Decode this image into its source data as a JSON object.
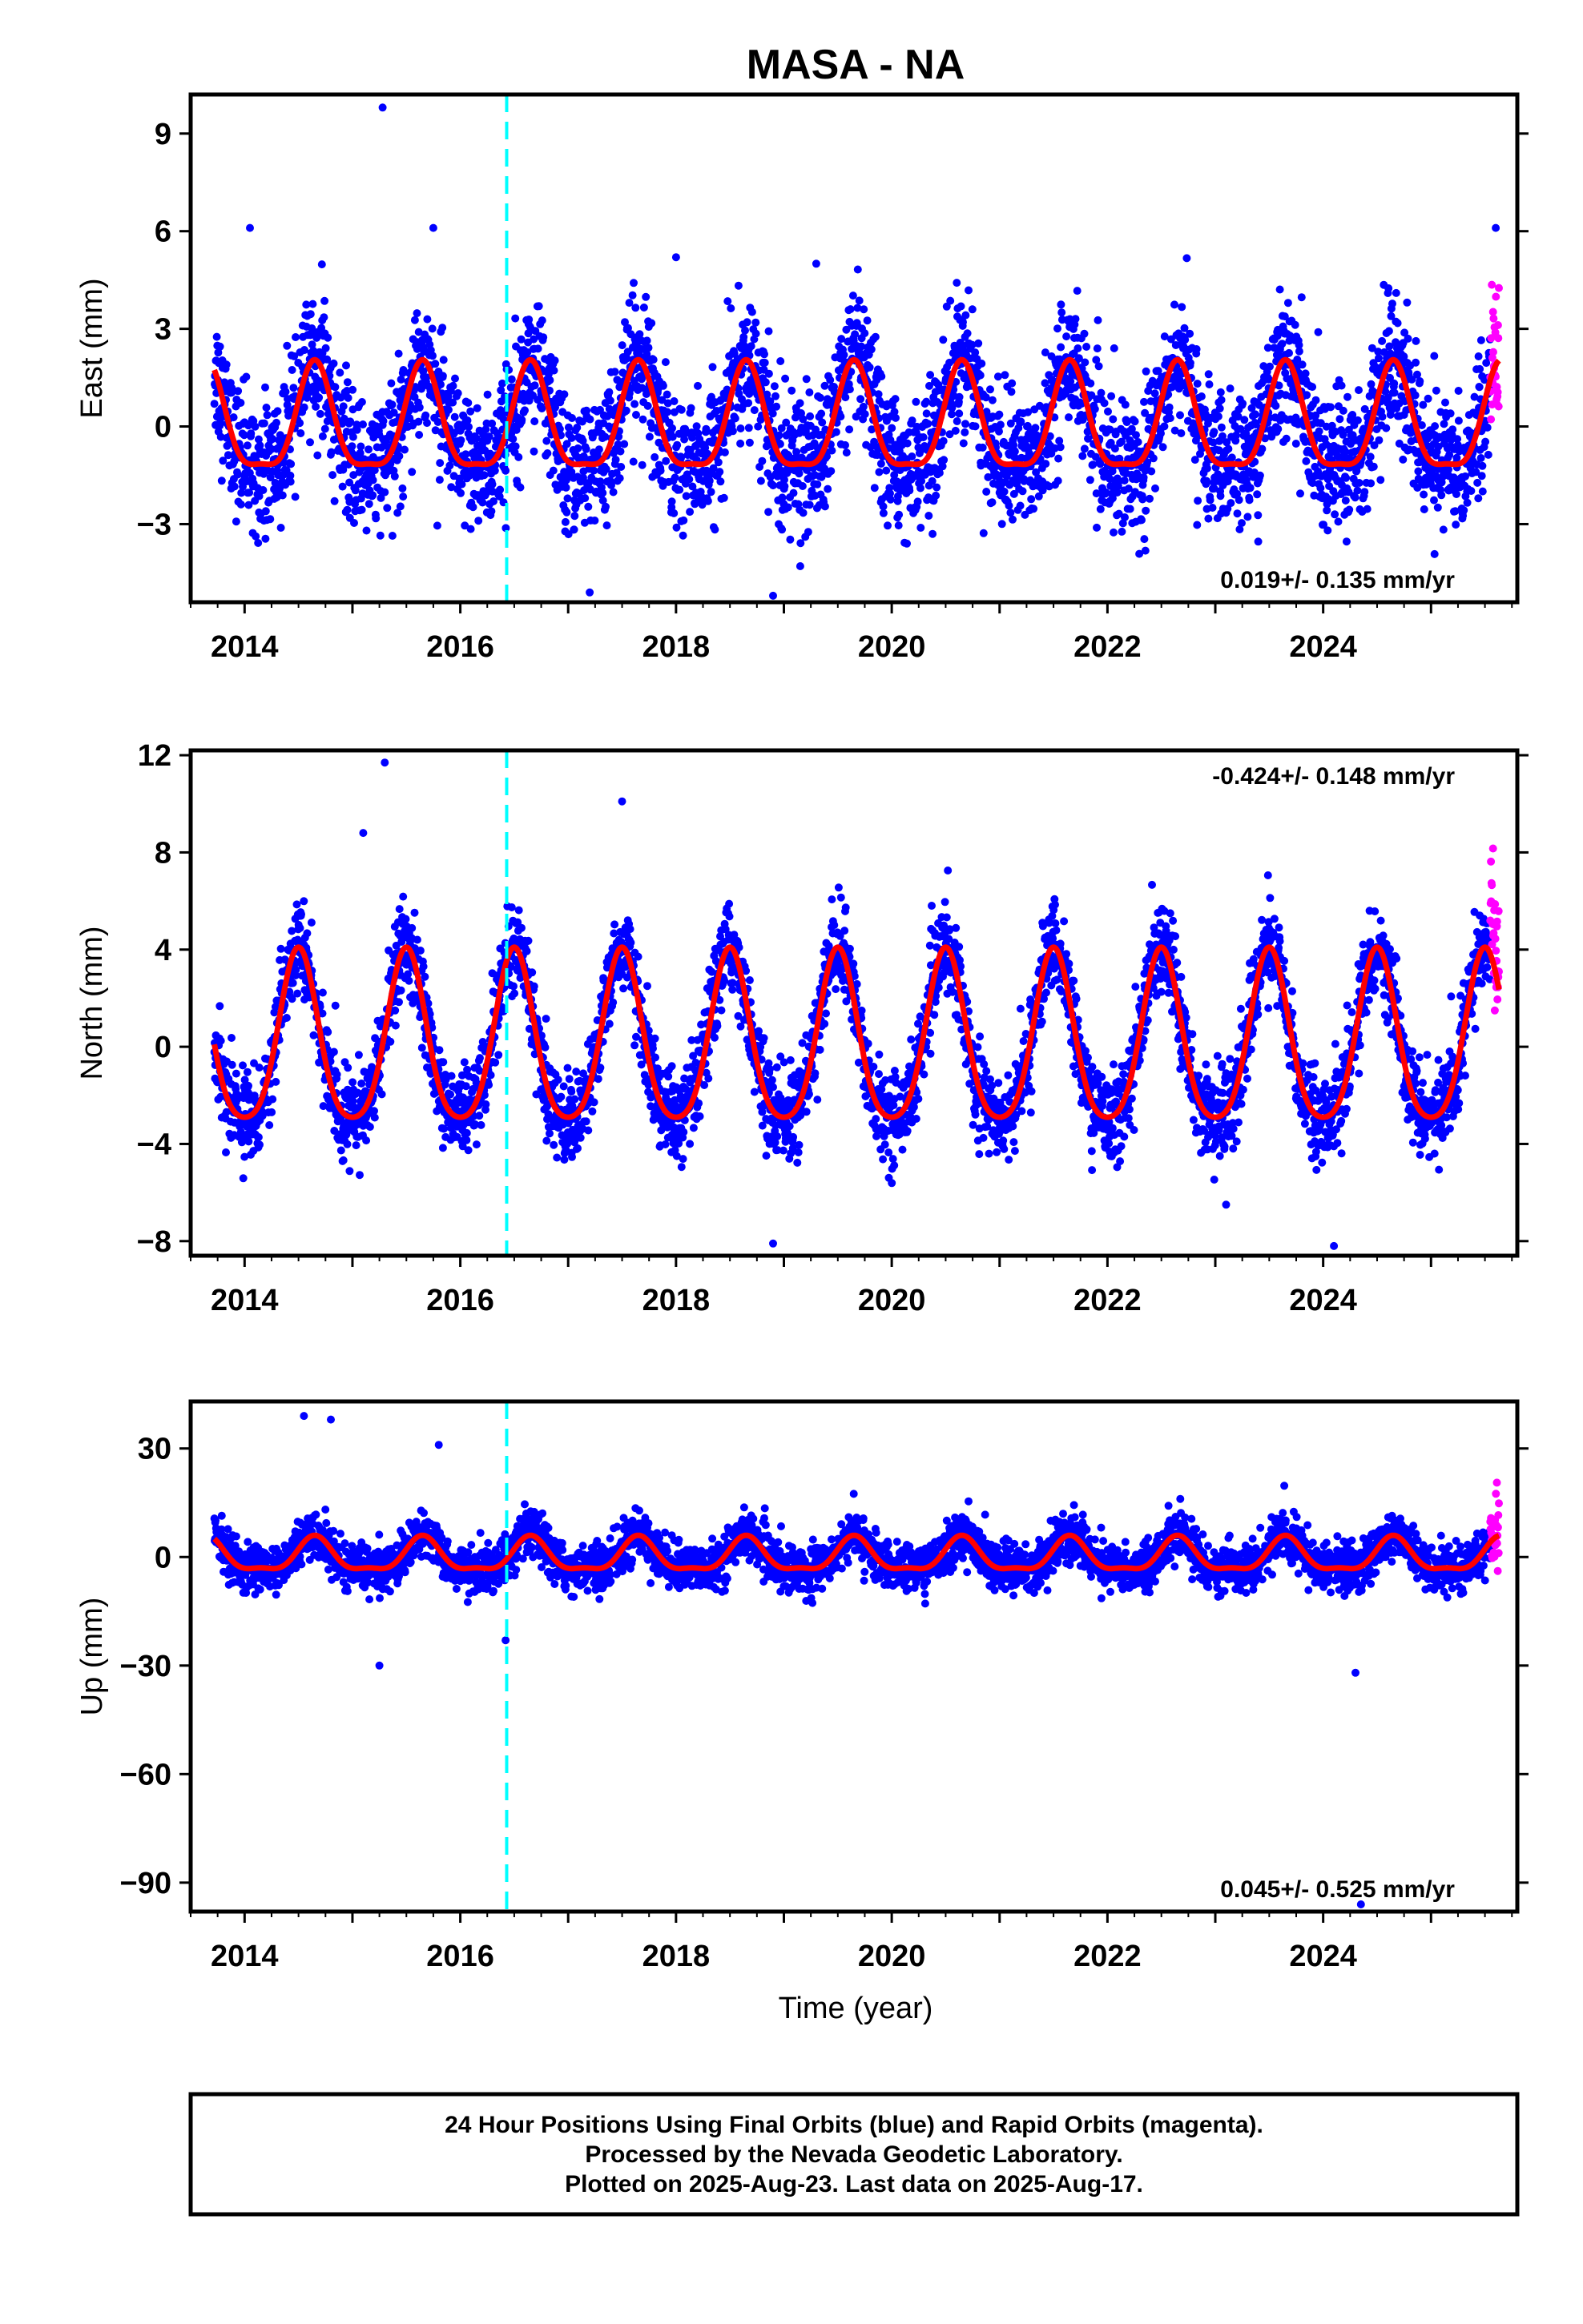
{
  "chart_data": {
    "type": "scatter",
    "title": "MASA - NA",
    "xlabel": "Time (year)",
    "x_tick_labels": [
      "2014",
      "2016",
      "2018",
      "2020",
      "2022",
      "2024"
    ],
    "x_range": [
      2013.5,
      2025.8
    ],
    "event_line_x": 2016.43,
    "data_start": 2013.72,
    "rapid_start": 2025.55,
    "data_end": 2025.63,
    "colors": {
      "final_orbits": "#0000ff",
      "rapid_orbits": "#ff00ff",
      "model_fit": "#ff0000",
      "event_line": "#00ffff"
    },
    "panels": [
      {
        "name": "east",
        "ylabel": "East (mm)",
        "ylim": [
          -5.4,
          10.2
        ],
        "yticks": [
          9,
          6,
          3,
          0,
          -3
        ],
        "ytick_labels": [
          "9",
          "6",
          "3",
          "0",
          "−3"
        ],
        "rate_text": "0.019+/- 0.135 mm/yr",
        "rate_position": "bottom-right",
        "annual_amplitude": 1.6,
        "annual_peak": 2018.65,
        "semiannual_amplitude": 0.45,
        "noise": 1.0,
        "outliers": [
          [
            2015.28,
            9.8
          ],
          [
            2014.05,
            6.1
          ],
          [
            2015.75,
            6.1
          ],
          [
            2018.0,
            5.2
          ],
          [
            2019.3,
            5.0
          ],
          [
            2025.6,
            6.1
          ],
          [
            2018.9,
            -5.2
          ],
          [
            2017.2,
            -5.1
          ]
        ]
      },
      {
        "name": "north",
        "ylabel": "North (mm)",
        "ylim": [
          -8.6,
          12.2
        ],
        "yticks": [
          12,
          8,
          4,
          0,
          -4,
          -8
        ],
        "ytick_labels": [
          "12",
          "8",
          "4",
          "0",
          "−4",
          "−8"
        ],
        "rate_text": "-0.424+/- 0.148 mm/yr",
        "rate_position": "top-right",
        "annual_amplitude": 3.5,
        "annual_peak": 2018.5,
        "semiannual_amplitude": 0.6,
        "noise": 0.9,
        "outliers": [
          [
            2015.3,
            11.7
          ],
          [
            2015.1,
            8.8
          ],
          [
            2017.5,
            10.1
          ],
          [
            2018.9,
            -8.1
          ],
          [
            2024.1,
            -8.2
          ],
          [
            2023.1,
            -6.5
          ]
        ]
      },
      {
        "name": "up",
        "ylabel": "Up (mm)",
        "ylim": [
          -98,
          43
        ],
        "yticks": [
          30,
          0,
          -30,
          -60,
          -90
        ],
        "ytick_labels": [
          "30",
          "0",
          "−30",
          "−60",
          "−90"
        ],
        "rate_text": "0.045+/- 0.525 mm/yr",
        "rate_position": "bottom-right",
        "annual_amplitude": 4.5,
        "annual_peak": 2018.65,
        "semiannual_amplitude": 1.5,
        "noise": 3.2,
        "outliers": [
          [
            2014.55,
            39
          ],
          [
            2014.8,
            38
          ],
          [
            2015.25,
            -30
          ],
          [
            2016.42,
            -23
          ],
          [
            2024.3,
            -32
          ],
          [
            2024.35,
            -96
          ],
          [
            2015.8,
            31
          ]
        ]
      }
    ]
  },
  "footer": {
    "line1": "24 Hour Positions Using Final Orbits (blue) and Rapid Orbits (magenta).",
    "line2": "Processed by the Nevada Geodetic Laboratory.",
    "line3": "Plotted on 2025-Aug-23. Last data on 2025-Aug-17."
  }
}
